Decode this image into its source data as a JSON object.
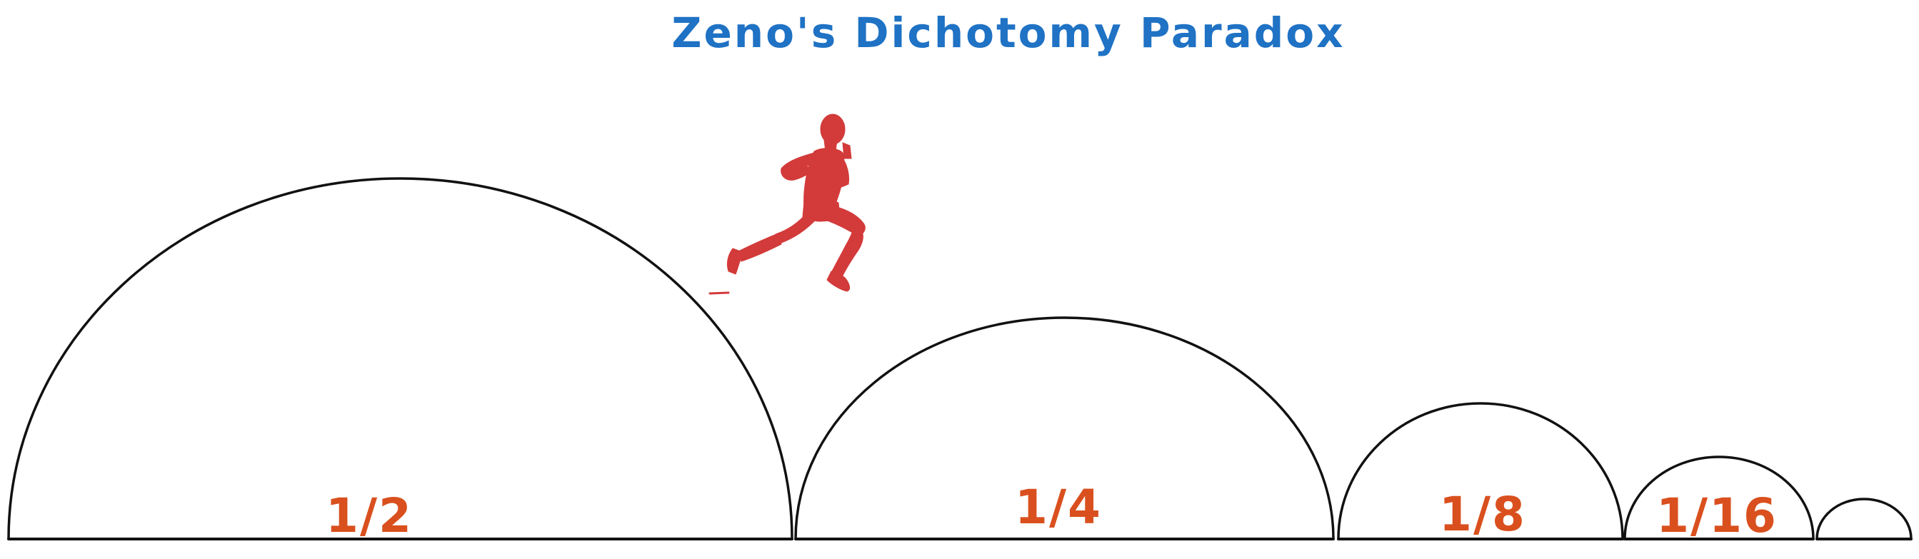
{
  "title": "Zeno's Dichotomy Paradox",
  "colors": {
    "title": "#1f72c4",
    "label": "#d9501e",
    "runner": "#d33a3a",
    "line": "#111111"
  },
  "runner": {
    "icon": "running-person-icon"
  },
  "segments": [
    {
      "label": "1/2"
    },
    {
      "label": "1/4"
    },
    {
      "label": "1/8"
    },
    {
      "label": "1/16"
    },
    {
      "label": ""
    }
  ]
}
